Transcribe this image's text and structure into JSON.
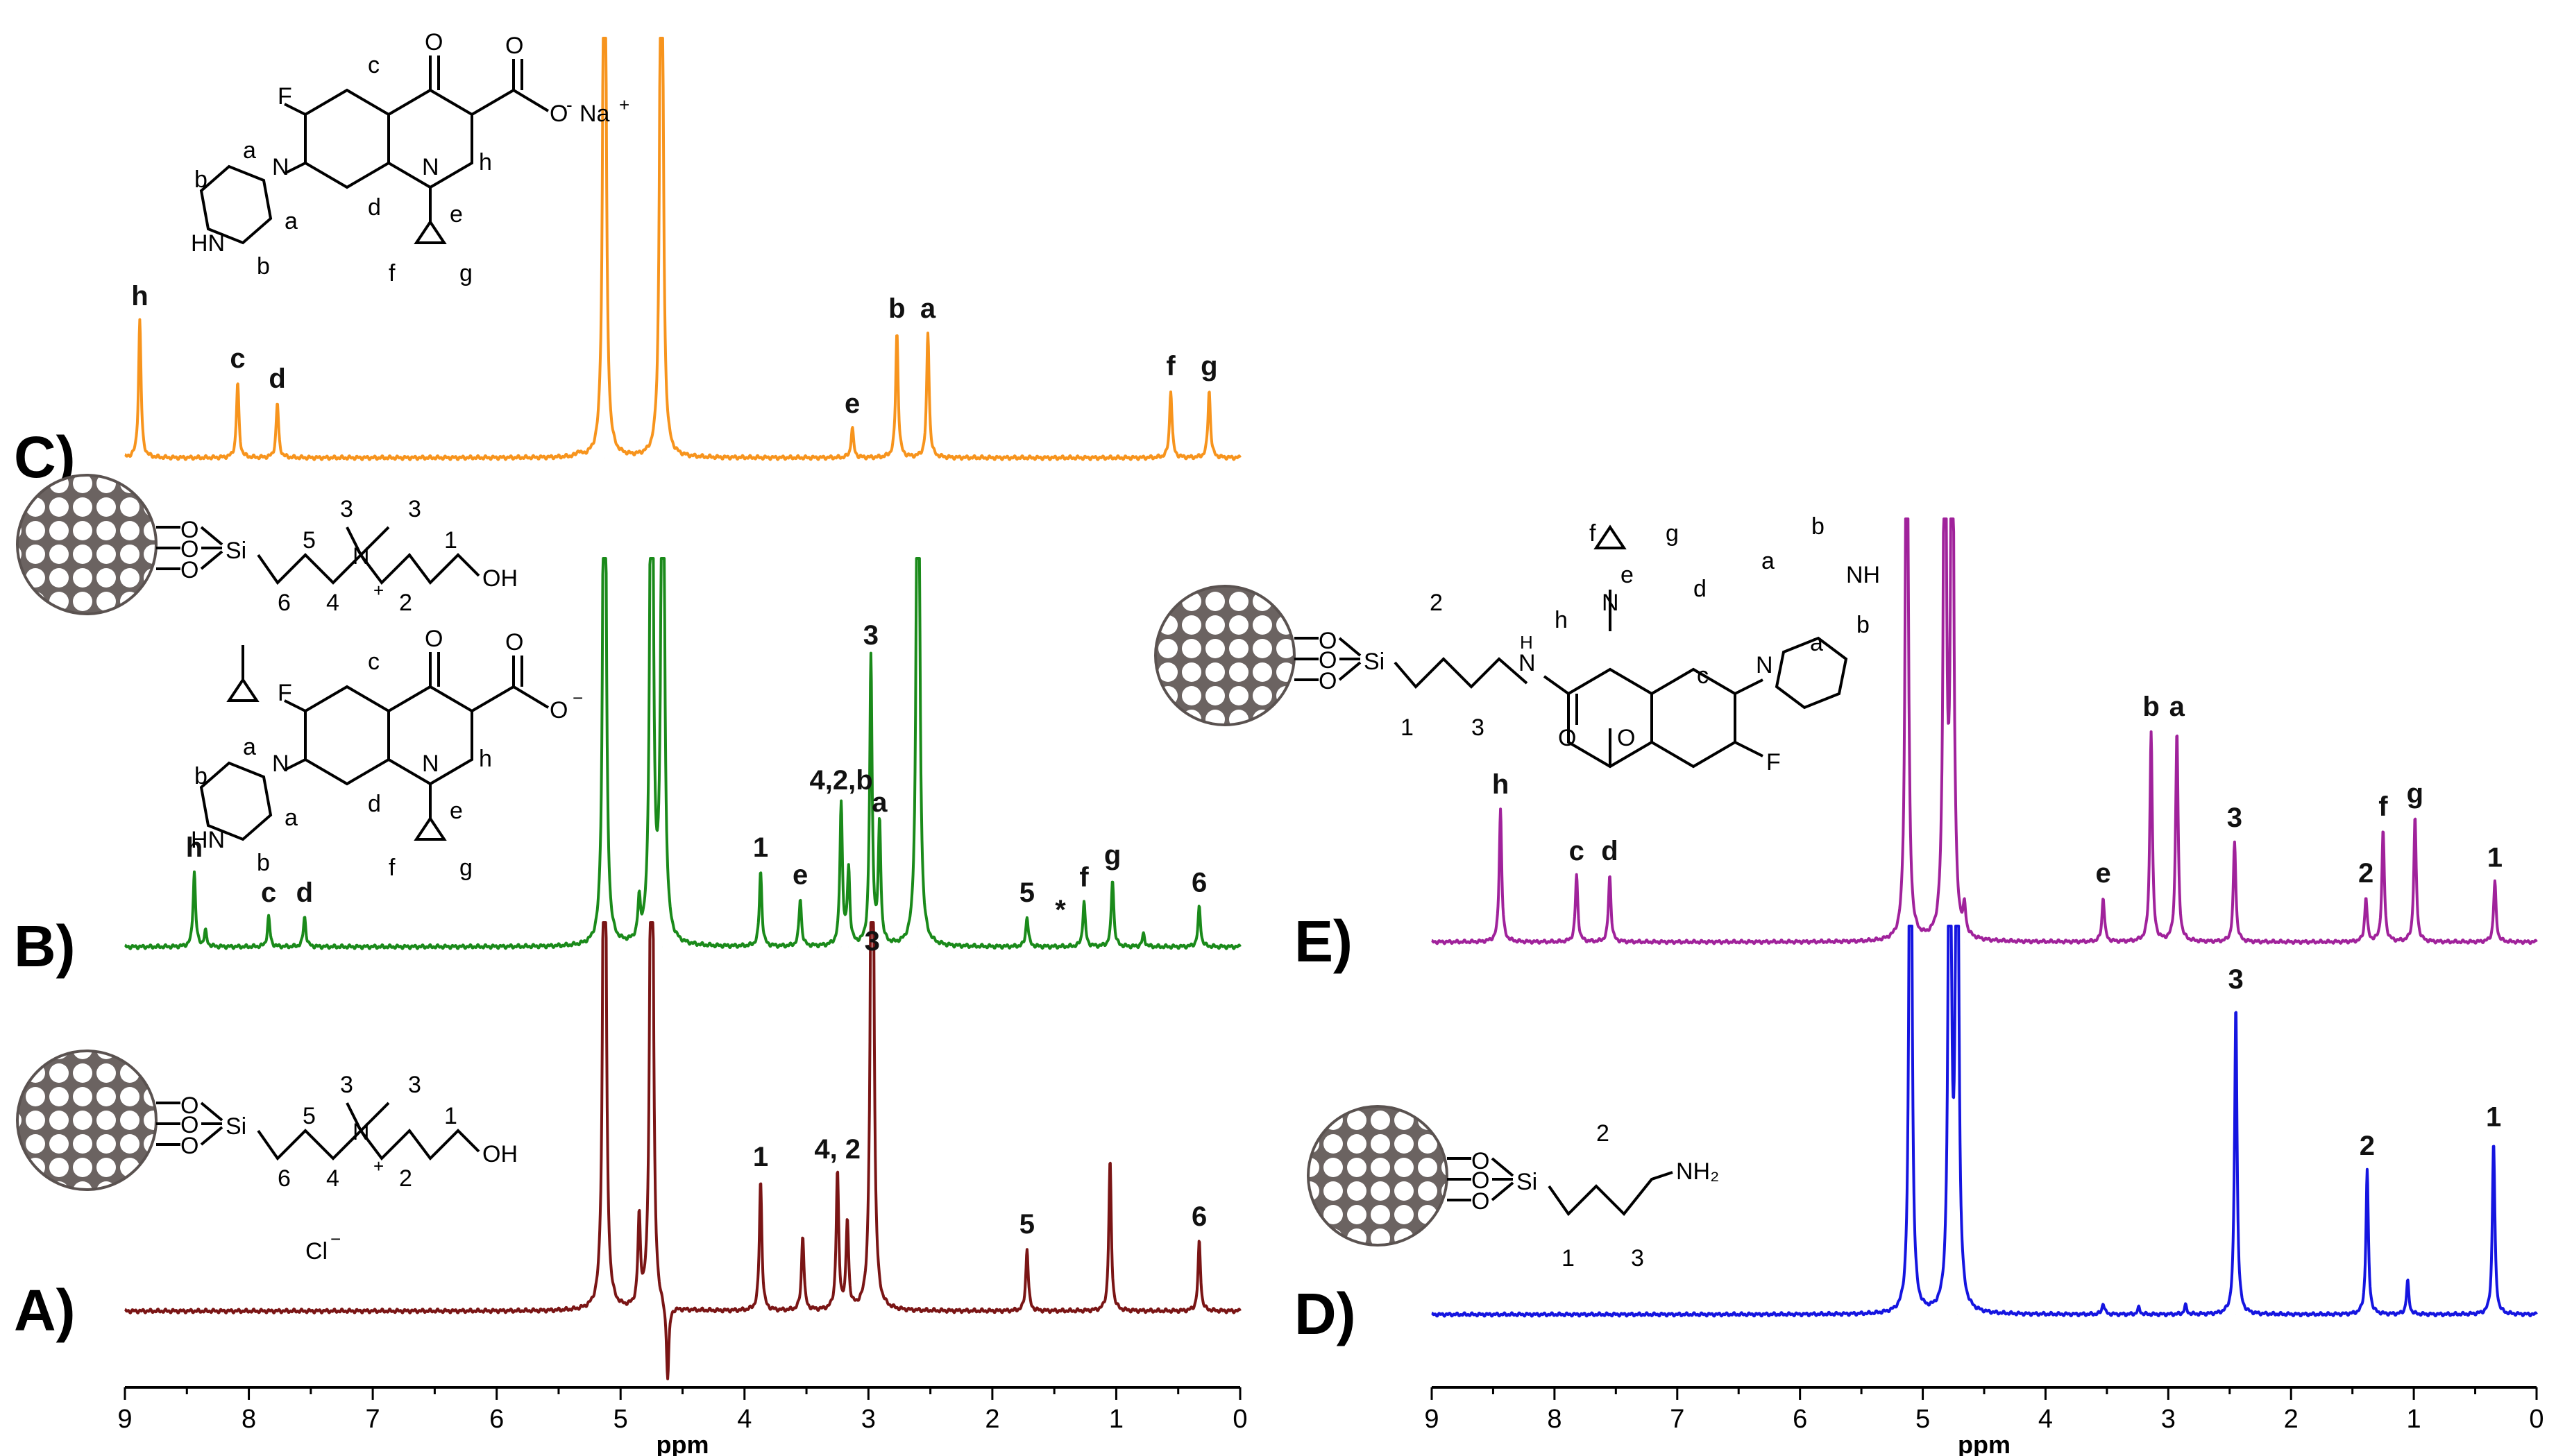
{
  "chart_data": [
    {
      "type": "line",
      "panel": "left",
      "xlabel": "ppm",
      "xlim": [
        9,
        0
      ],
      "x_reversed": true,
      "x_ticks": [
        9,
        8,
        7,
        6,
        5,
        4,
        3,
        2,
        1,
        0
      ],
      "series": [
        {
          "panel_label": "C)",
          "color": "#f7941d",
          "peaks": [
            {
              "ppm": 8.88,
              "h": 0.55,
              "label": "h"
            },
            {
              "ppm": 8.09,
              "h": 0.3,
              "label": "c"
            },
            {
              "ppm": 7.77,
              "h": 0.22,
              "label": "d"
            },
            {
              "ppm": 5.34,
              "h": 0.02,
              "label": ""
            },
            {
              "ppm": 5.13,
              "h": 3.5,
              "label": ""
            },
            {
              "ppm": 4.67,
              "h": 3.5,
              "label": ""
            },
            {
              "ppm": 3.13,
              "h": 0.12,
              "label": "e"
            },
            {
              "ppm": 2.77,
              "h": 0.5,
              "label": "b"
            },
            {
              "ppm": 2.52,
              "h": 0.5,
              "label": "a"
            },
            {
              "ppm": 0.56,
              "h": 0.27,
              "label": "f"
            },
            {
              "ppm": 0.25,
              "h": 0.27,
              "label": "g"
            }
          ]
        },
        {
          "panel_label": "B)",
          "color": "#1a8a1a",
          "peaks": [
            {
              "ppm": 8.44,
              "h": 0.3,
              "label": "h"
            },
            {
              "ppm": 8.35,
              "h": 0.06,
              "label": ""
            },
            {
              "ppm": 7.84,
              "h": 0.12,
              "label": "c"
            },
            {
              "ppm": 7.55,
              "h": 0.12,
              "label": "d"
            },
            {
              "ppm": 5.13,
              "h": 3.5,
              "label": ""
            },
            {
              "ppm": 4.85,
              "h": 0.15,
              "label": ""
            },
            {
              "ppm": 4.75,
              "h": 3.5,
              "label": ""
            },
            {
              "ppm": 4.66,
              "h": 3.5,
              "label": ""
            },
            {
              "ppm": 3.87,
              "h": 0.3,
              "label": "1"
            },
            {
              "ppm": 3.55,
              "h": 0.19,
              "label": "e"
            },
            {
              "ppm": 3.22,
              "h": 0.57,
              "label": "4,2,b"
            },
            {
              "ppm": 3.16,
              "h": 0.3,
              "label": ""
            },
            {
              "ppm": 2.98,
              "h": 1.15,
              "label": "3"
            },
            {
              "ppm": 2.91,
              "h": 0.48,
              "label": "a"
            },
            {
              "ppm": 2.6,
              "h": 3.5,
              "label": ""
            },
            {
              "ppm": 1.72,
              "h": 0.12,
              "label": "5"
            },
            {
              "ppm": 1.26,
              "h": 0.18,
              "label": "f"
            },
            {
              "ppm": 1.03,
              "h": 0.27,
              "label": "g"
            },
            {
              "ppm": 0.78,
              "h": 0.05,
              "label": ""
            },
            {
              "ppm": 0.33,
              "h": 0.16,
              "label": "6"
            }
          ],
          "annotations": [
            {
              "text": "*",
              "ppm": 1.45
            }
          ]
        },
        {
          "panel_label": "A)",
          "color": "#7a1515",
          "peaks": [
            {
              "ppm": 5.13,
              "h": 3.5,
              "label": ""
            },
            {
              "ppm": 4.85,
              "h": 0.35,
              "label": ""
            },
            {
              "ppm": 4.75,
              "h": 3.5,
              "label": ""
            },
            {
              "ppm": 4.62,
              "h": -0.3,
              "label": ""
            },
            {
              "ppm": 3.87,
              "h": 0.52,
              "label": "1"
            },
            {
              "ppm": 3.53,
              "h": 0.3,
              "label": ""
            },
            {
              "ppm": 3.25,
              "h": 0.55,
              "label": "4, 2"
            },
            {
              "ppm": 3.17,
              "h": 0.35,
              "label": ""
            },
            {
              "ppm": 2.97,
              "h": 3.5,
              "label": "3"
            },
            {
              "ppm": 1.72,
              "h": 0.25,
              "label": "5"
            },
            {
              "ppm": 1.05,
              "h": 0.6,
              "label": ""
            },
            {
              "ppm": 0.33,
              "h": 0.28,
              "label": "6"
            }
          ]
        }
      ]
    },
    {
      "type": "line",
      "panel": "right",
      "xlabel": "ppm",
      "xlim": [
        9,
        0
      ],
      "x_reversed": true,
      "x_ticks": [
        9,
        8,
        7,
        6,
        5,
        4,
        3,
        2,
        1,
        0
      ],
      "series": [
        {
          "panel_label": "E)",
          "color": "#a0229b",
          "peaks": [
            {
              "ppm": 8.44,
              "h": 0.6,
              "label": "h"
            },
            {
              "ppm": 7.82,
              "h": 0.3,
              "label": "c"
            },
            {
              "ppm": 7.55,
              "h": 0.3,
              "label": "d"
            },
            {
              "ppm": 5.13,
              "h": 3.5,
              "label": ""
            },
            {
              "ppm": 4.82,
              "h": 3.5,
              "label": ""
            },
            {
              "ppm": 4.76,
              "h": 3.5,
              "label": ""
            },
            {
              "ppm": 4.66,
              "h": 0.12,
              "label": ""
            },
            {
              "ppm": 3.53,
              "h": 0.2,
              "label": "e"
            },
            {
              "ppm": 3.14,
              "h": 0.95,
              "label": "b"
            },
            {
              "ppm": 2.93,
              "h": 0.95,
              "label": "a"
            },
            {
              "ppm": 2.46,
              "h": 0.45,
              "label": "3"
            },
            {
              "ppm": 1.39,
              "h": 0.2,
              "label": "2"
            },
            {
              "ppm": 1.25,
              "h": 0.5,
              "label": "f"
            },
            {
              "ppm": 0.99,
              "h": 0.56,
              "label": "g"
            },
            {
              "ppm": 0.34,
              "h": 0.27,
              "label": "1"
            }
          ]
        },
        {
          "panel_label": "D)",
          "color": "#1515e0",
          "peaks": [
            {
              "ppm": 5.1,
              "h": 3.5,
              "label": ""
            },
            {
              "ppm": 4.78,
              "h": 3.5,
              "label": ""
            },
            {
              "ppm": 4.72,
              "h": 3.5,
              "label": ""
            },
            {
              "ppm": 3.53,
              "h": 0.05,
              "label": ""
            },
            {
              "ppm": 3.24,
              "h": 0.03,
              "label": ""
            },
            {
              "ppm": 2.86,
              "h": 0.04,
              "label": ""
            },
            {
              "ppm": 2.45,
              "h": 1.4,
              "label": "3"
            },
            {
              "ppm": 1.38,
              "h": 0.65,
              "label": "2"
            },
            {
              "ppm": 1.05,
              "h": 0.15,
              "label": ""
            },
            {
              "ppm": 0.35,
              "h": 0.78,
              "label": "1"
            }
          ]
        }
      ]
    }
  ],
  "structures": {
    "C": {
      "atoms": [
        "F",
        "O",
        "O",
        "O",
        "Na",
        "N",
        "N",
        "HN"
      ],
      "charges": [
        "-",
        "+"
      ],
      "labels": [
        "c",
        "a",
        "b",
        "h",
        "d",
        "e",
        "b",
        "a",
        "f",
        "g"
      ]
    },
    "B": {
      "atoms": [
        "O",
        "O",
        "O",
        "Si",
        "N",
        "OH",
        "F",
        "O",
        "O",
        "O",
        "N",
        "N",
        "HN"
      ],
      "numbers": [
        "3",
        "3",
        "5",
        "1",
        "6",
        "4",
        "2"
      ],
      "labels": [
        "c",
        "a",
        "b",
        "h",
        "d",
        "a",
        "b",
        "e",
        "f",
        "g"
      ],
      "charges": [
        "+",
        "−"
      ]
    },
    "A": {
      "atoms": [
        "O",
        "O",
        "O",
        "Si",
        "N",
        "OH",
        "Cl"
      ],
      "numbers": [
        "3",
        "3",
        "5",
        "1",
        "6",
        "4",
        "2"
      ],
      "charges": [
        "+",
        "−"
      ]
    },
    "E": {
      "atoms": [
        "O",
        "O",
        "O",
        "Si",
        "H",
        "N",
        "N",
        "N",
        "NH",
        "O",
        "O",
        "F"
      ],
      "numbers": [
        "2",
        "1",
        "3"
      ],
      "labels": [
        "f",
        "g",
        "e",
        "d",
        "h",
        "a",
        "b",
        "b",
        "a",
        "c"
      ]
    },
    "D": {
      "atoms": [
        "O",
        "O",
        "O",
        "Si",
        "NH₂"
      ],
      "numbers": [
        "2",
        "1",
        "3"
      ]
    }
  }
}
